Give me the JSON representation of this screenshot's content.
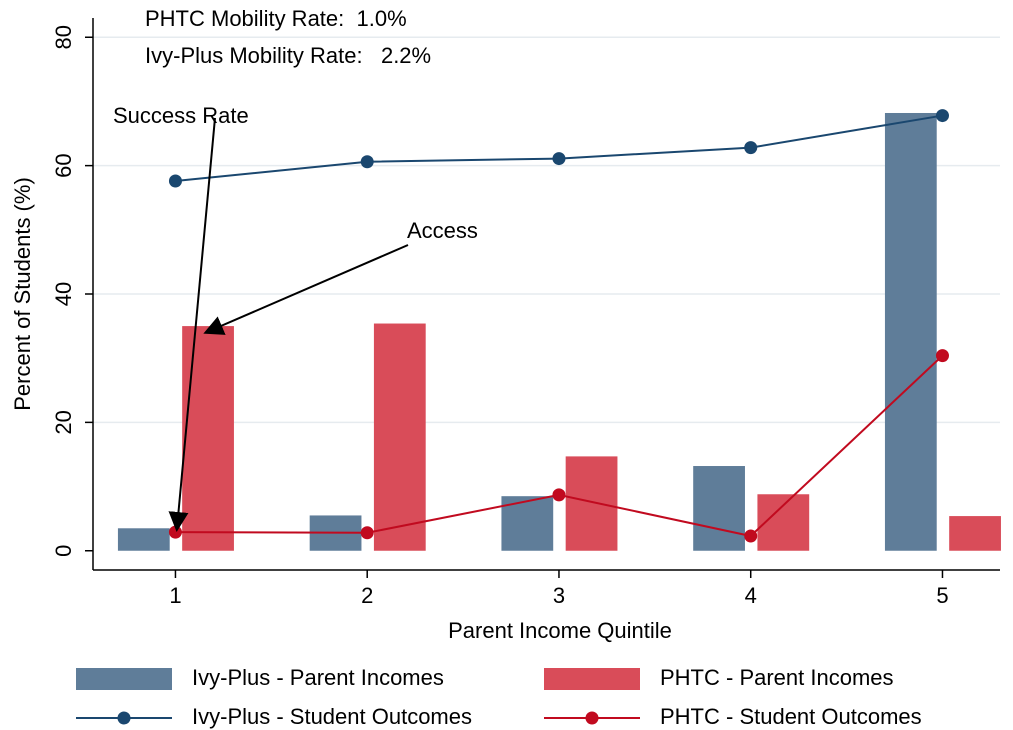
{
  "chart_data": {
    "type": "bar",
    "annotations": [
      "PHTC Mobility Rate:  1.0%",
      "Ivy-Plus Mobility Rate:   2.2%",
      "Success Rate",
      "Access"
    ],
    "x_label": "Parent Income Quintile",
    "y_label": "Percent of Students (%)",
    "x": [
      1,
      2,
      3,
      4,
      5
    ],
    "xlim": [
      0.57,
      5.3
    ],
    "xticks": [
      1,
      2,
      3,
      4,
      5
    ],
    "ylim": [
      -3,
      83
    ],
    "yticks": [
      0,
      20,
      40,
      60,
      80
    ],
    "grid": true,
    "series": [
      {
        "name": "Ivy-Plus - Parent Incomes",
        "kind": "bar",
        "color": "#5f7d99",
        "values": [
          3.5,
          5.5,
          8.5,
          13.2,
          68.2
        ]
      },
      {
        "name": "PHTC - Parent Incomes",
        "kind": "bar",
        "color": "#d94c59",
        "values": [
          35.0,
          35.4,
          14.7,
          8.8,
          5.4
        ]
      },
      {
        "name": "Ivy-Plus - Student Outcomes",
        "kind": "line",
        "color": "#1a476f",
        "values": [
          57.6,
          60.6,
          61.1,
          62.8,
          67.8
        ]
      },
      {
        "name": "PHTC - Student Outcomes",
        "kind": "line",
        "color": "#c10a1f",
        "values": [
          2.9,
          2.8,
          8.7,
          2.3,
          30.4
        ]
      }
    ]
  }
}
